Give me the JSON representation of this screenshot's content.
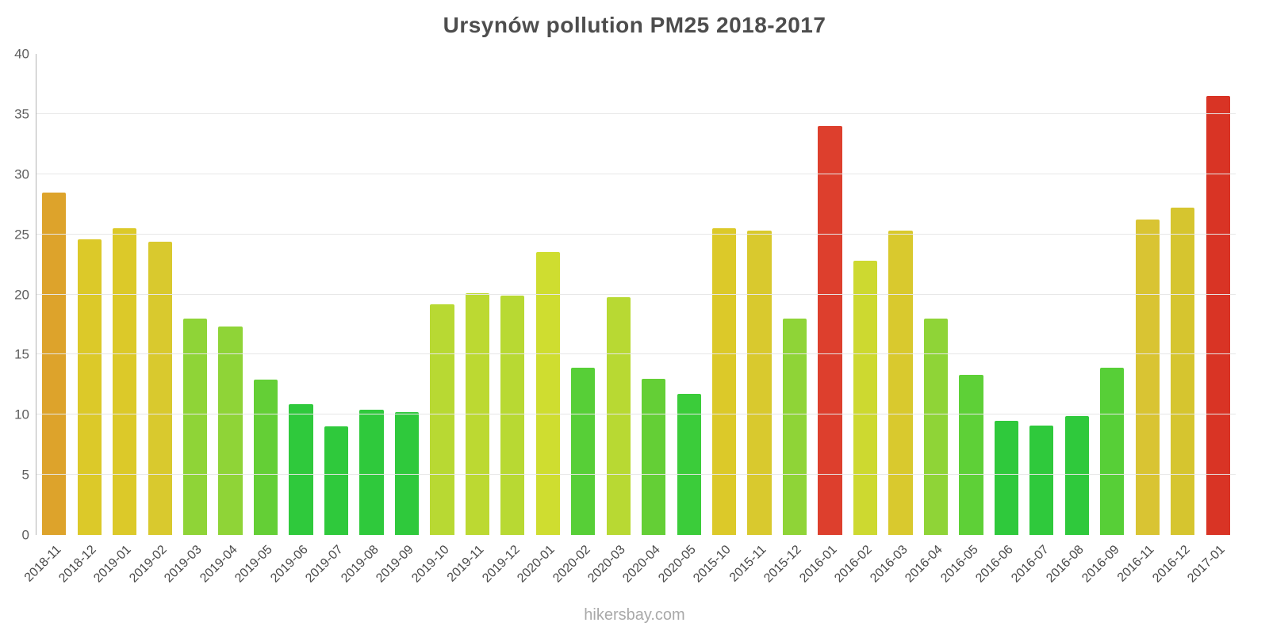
{
  "chart": {
    "title": "Ursynów pollution PM25 2018-2017"
  },
  "footer": {
    "text": "hikersbay.com"
  },
  "chart_data": {
    "type": "bar",
    "title": "Ursynów pollution PM25 2018-2017",
    "xlabel": "",
    "ylabel": "",
    "ylim": [
      0,
      40
    ],
    "yticks": [
      0,
      5,
      10,
      15,
      20,
      25,
      30,
      35,
      40
    ],
    "grid": "horizontal",
    "legend": "none",
    "categories": [
      "2018-11",
      "2018-12",
      "2019-01",
      "2019-02",
      "2019-03",
      "2019-04",
      "2019-05",
      "2019-06",
      "2019-07",
      "2019-08",
      "2019-09",
      "2019-10",
      "2019-11",
      "2019-12",
      "2020-01",
      "2020-02",
      "2020-03",
      "2020-04",
      "2020-05",
      "2015-10",
      "2015-11",
      "2015-12",
      "2016-01",
      "2016-02",
      "2016-03",
      "2016-04",
      "2016-05",
      "2016-06",
      "2016-07",
      "2016-08",
      "2016-09",
      "2016-11",
      "2016-12",
      "2017-01"
    ],
    "values": [
      28.5,
      24.6,
      25.5,
      24.4,
      18.0,
      17.3,
      12.9,
      10.9,
      9.0,
      10.4,
      10.2,
      19.2,
      20.1,
      19.9,
      23.5,
      13.9,
      19.8,
      13.0,
      11.7,
      25.5,
      25.3,
      18.0,
      34.0,
      22.8,
      25.3,
      18.0,
      13.3,
      9.5,
      9.1,
      9.9,
      13.9,
      26.2,
      27.2,
      36.5
    ],
    "colors": [
      "#dda32b",
      "#dcc929",
      "#dcc929",
      "#d9c92e",
      "#8fd437",
      "#8fd437",
      "#64cf36",
      "#2fc93c",
      "#2fc93c",
      "#2fc93c",
      "#2fc93c",
      "#b8d933",
      "#bcd932",
      "#b8d933",
      "#cfdd30",
      "#57cf37",
      "#b8d933",
      "#64cf36",
      "#3bcc3a",
      "#dcc929",
      "#d9c92e",
      "#8fd437",
      "#dd3f2d",
      "#cdd930",
      "#d9c92e",
      "#8fd437",
      "#5ed037",
      "#2fc93c",
      "#2fc93c",
      "#2fc93c",
      "#57cf37",
      "#d9c433",
      "#d6c52f",
      "#d93425"
    ],
    "value_color_legend": {
      "low_green": "#2fc93c",
      "mid_yellow_green": "#b8d933",
      "yellow": "#dcc929",
      "orange": "#dda32b",
      "red_high": "#dd3f2d"
    }
  }
}
